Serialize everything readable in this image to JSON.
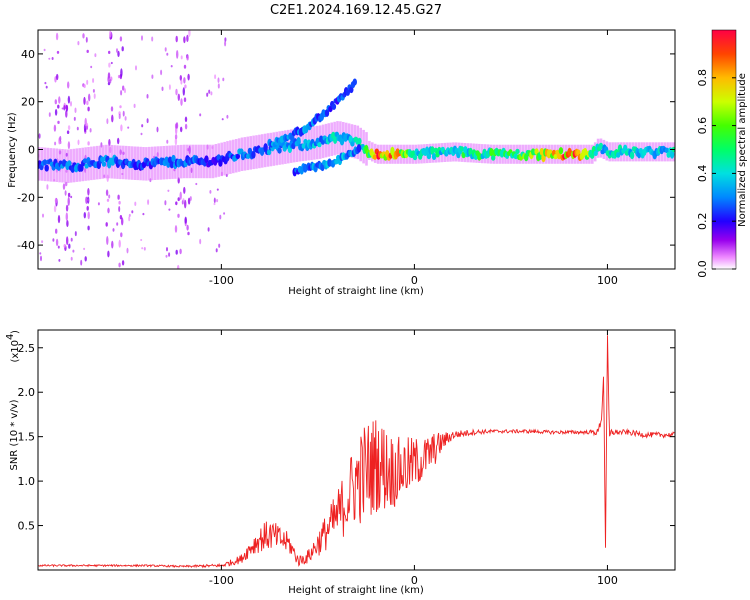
{
  "title": "C2E1.2024.169.12.45.G27",
  "colors": {
    "snr_line": "#ee2222",
    "frame": "#000000"
  },
  "chart_data": [
    {
      "type": "heatmap",
      "xlabel": "Height of straight line (km)",
      "ylabel": "Frequency (Hz)",
      "xlim": [
        -195,
        135
      ],
      "ylim": [
        -50,
        50
      ],
      "x_ticks": [
        -100,
        0,
        100
      ],
      "x_tick_labels": [
        "-100",
        "0",
        "100"
      ],
      "y_ticks": [
        -40,
        -20,
        0,
        20,
        40
      ],
      "y_tick_labels": [
        "-40",
        "-20",
        "0",
        "20",
        "40"
      ],
      "colorbar": {
        "label": "Normalized spectral amplitude",
        "range": [
          0,
          1
        ],
        "ticks": [
          0,
          0.2,
          0.4,
          0.6,
          0.8
        ],
        "tick_labels": [
          "0.0",
          "0.2",
          "0.4",
          "0.6",
          "0.8"
        ],
        "colormap": "rainbow"
      },
      "ridge": {
        "x": [
          -195,
          -180,
          -160,
          -140,
          -120,
          -105,
          -90,
          -75,
          -60,
          -50,
          -40,
          -30,
          -25,
          -20,
          -10,
          0,
          20,
          40,
          60,
          80,
          92,
          95,
          100,
          120,
          135
        ],
        "y": [
          -6,
          -7,
          -5,
          -6,
          -5,
          -5,
          -2,
          0,
          2,
          3,
          5,
          3,
          0,
          -2,
          -2,
          -2,
          -1,
          -2,
          -2,
          -2,
          -2,
          1,
          -1,
          -1,
          -1
        ],
        "amplitude": [
          0.25,
          0.3,
          0.3,
          0.25,
          0.3,
          0.2,
          0.3,
          0.3,
          0.35,
          0.35,
          0.4,
          0.4,
          0.5,
          0.9,
          0.85,
          0.4,
          0.45,
          0.5,
          0.6,
          0.9,
          0.55,
          0.4,
          0.4,
          0.4,
          0.4
        ]
      },
      "upper_branch": {
        "x": [
          -75,
          -65,
          -55,
          -45,
          -35,
          -30
        ],
        "y": [
          2,
          5,
          10,
          16,
          24,
          28
        ],
        "amplitude": [
          0.3,
          0.3,
          0.3,
          0.25,
          0.25,
          0.2
        ]
      },
      "lower_branch": {
        "x": [
          -62,
          -55,
          -45,
          -35,
          -28
        ],
        "y": [
          -9,
          -8,
          -6,
          -3,
          0
        ],
        "amplitude": [
          0.25,
          0.3,
          0.35,
          0.35,
          0.3
        ]
      },
      "vertical_streaks_x": [
        -185,
        -180,
        -170,
        -158,
        -152,
        -122,
        -118
      ]
    },
    {
      "type": "line",
      "xlabel": "Height of straight line (km)",
      "ylabel": "SNR (10 * v/v)",
      "y_multiplier": "(x10",
      "y_multiplier_exponent": "4",
      "xlim": [
        -195,
        135
      ],
      "ylim": [
        0,
        2.7
      ],
      "x_ticks": [
        -100,
        0,
        100
      ],
      "x_tick_labels": [
        "-100",
        "0",
        "100"
      ],
      "y_ticks": [
        0.5,
        1.0,
        1.5,
        2.0,
        2.5
      ],
      "y_tick_labels": [
        "0.5",
        "1.0",
        "1.5",
        "2.0",
        "2.5"
      ],
      "series": [
        {
          "x": [
            -195,
            -180,
            -160,
            -140,
            -120,
            -100,
            -90,
            -85,
            -80,
            -75,
            -70,
            -65,
            -60,
            -55,
            -50,
            -45,
            -40,
            -35,
            -30,
            -25,
            -20,
            -15,
            -10,
            -5,
            0,
            5,
            10,
            15,
            20,
            30,
            40,
            50,
            60,
            70,
            80,
            90,
            95,
            97,
            98,
            99,
            100,
            101,
            102,
            105,
            110,
            120,
            135
          ],
          "y": [
            0.05,
            0.05,
            0.05,
            0.05,
            0.04,
            0.05,
            0.12,
            0.25,
            0.35,
            0.4,
            0.35,
            0.3,
            0.1,
            0.15,
            0.3,
            0.45,
            0.6,
            0.8,
            1.0,
            1.1,
            1.2,
            1.15,
            1.1,
            1.15,
            1.2,
            1.25,
            1.35,
            1.45,
            1.52,
            1.55,
            1.56,
            1.56,
            1.56,
            1.55,
            1.55,
            1.55,
            1.55,
            1.7,
            2.2,
            0.25,
            2.7,
            1.5,
            1.55,
            1.55,
            1.55,
            1.52,
            1.52
          ],
          "noise": [
            0.01,
            0.01,
            0.01,
            0.01,
            0.01,
            0.02,
            0.05,
            0.1,
            0.15,
            0.18,
            0.15,
            0.12,
            0.06,
            0.08,
            0.15,
            0.22,
            0.3,
            0.4,
            0.5,
            0.6,
            0.55,
            0.5,
            0.4,
            0.35,
            0.3,
            0.25,
            0.2,
            0.1,
            0.05,
            0.03,
            0.02,
            0.02,
            0.02,
            0.02,
            0.02,
            0.02,
            0.04,
            0.05,
            0.05,
            0.05,
            0.05,
            0.05,
            0.04,
            0.03,
            0.03,
            0.03,
            0.03
          ]
        }
      ]
    }
  ]
}
